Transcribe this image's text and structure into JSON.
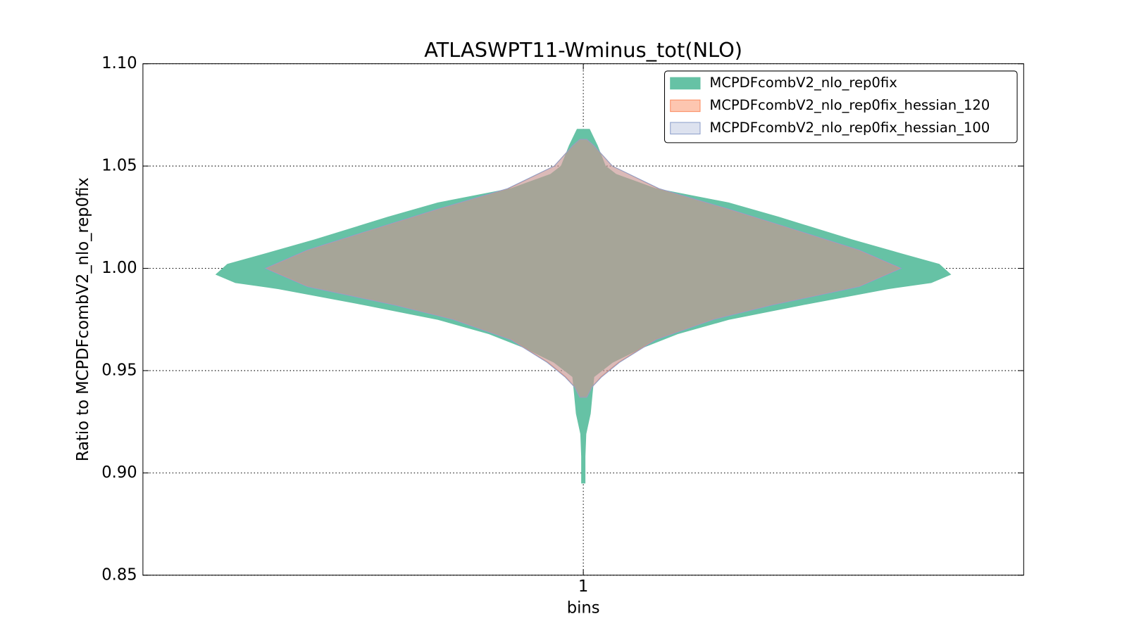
{
  "chart_data": {
    "type": "violin",
    "title": "ATLASWPT11-Wminus_tot(NLO)",
    "x_label": "bins",
    "y_label": "Ratio to MCPDFcombV2_nlo_rep0fix",
    "xlim": [
      0.5,
      1.5
    ],
    "xticks": [
      1
    ],
    "ylim": [
      0.85,
      1.1
    ],
    "yticks": [
      0.85,
      {
        "value": 0.9,
        "label": "0.90"
      },
      0.95,
      {
        "value": 1.0,
        "label": "1.00"
      },
      1.05,
      {
        "value": 1.1,
        "label": "1.10"
      }
    ],
    "grid": true,
    "legend": "upper right",
    "position": 1,
    "series": [
      {
        "name": "MCPDFcombV2_nlo_rep0fix",
        "color": "#66c2a5",
        "alpha": 1,
        "y": [
          1.068,
          1.06,
          1.05,
          1.046,
          1.039,
          1.032,
          1.025,
          1.014,
          1.007,
          1.002,
          0.997,
          0.993,
          0.99,
          0.982,
          0.975,
          0.968,
          0.961,
          0.954,
          0.947,
          0.938,
          0.929,
          0.919,
          0.908,
          0.895
        ],
        "widths": [
          0.007,
          0.016,
          0.025,
          0.037,
          0.082,
          0.165,
          0.222,
          0.305,
          0.362,
          0.404,
          0.417,
          0.395,
          0.346,
          0.247,
          0.165,
          0.107,
          0.066,
          0.033,
          0.012,
          0.01,
          0.008,
          0.003,
          0.002,
          0.002
        ]
      },
      {
        "name": "MCPDFcombV2_nlo_rep0fix_hessian_120",
        "color": "#fc8d62",
        "alpha": 0.5,
        "y": [
          1.063,
          1.06,
          1.05,
          1.039,
          1.029,
          1.018,
          1.009,
          1.0,
          0.991,
          0.982,
          0.975,
          0.965,
          0.954,
          0.947,
          0.942,
          0.937
        ],
        "widths": [
          0.004,
          0.012,
          0.033,
          0.085,
          0.164,
          0.246,
          0.312,
          0.36,
          0.312,
          0.213,
          0.147,
          0.081,
          0.04,
          0.02,
          0.01,
          0.004
        ]
      },
      {
        "name": "MCPDFcombV2_nlo_rep0fix_hessian_100",
        "color": "#8da0cb",
        "alpha": 0.3,
        "y": [
          1.063,
          1.06,
          1.05,
          1.039,
          1.029,
          1.018,
          1.009,
          1.0,
          0.991,
          0.982,
          0.975,
          0.965,
          0.954,
          0.947,
          0.942,
          0.937
        ],
        "widths": [
          0.004,
          0.012,
          0.033,
          0.086,
          0.165,
          0.247,
          0.313,
          0.361,
          0.313,
          0.214,
          0.148,
          0.082,
          0.041,
          0.021,
          0.01,
          0.004
        ]
      }
    ]
  }
}
